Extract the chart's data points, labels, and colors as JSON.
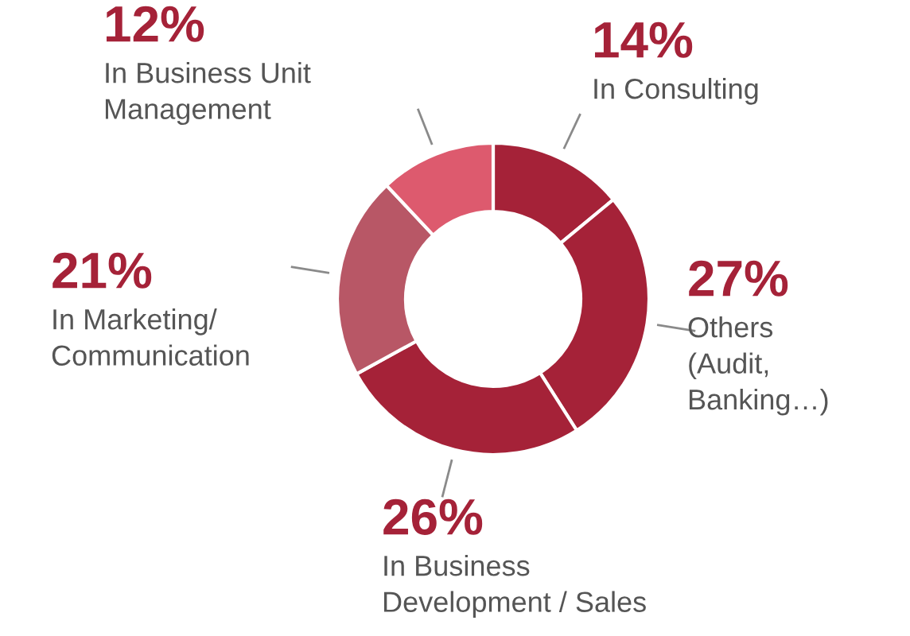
{
  "chart_data": {
    "type": "donut",
    "categories": [
      "In Consulting",
      "Others\n(Audit,\nBanking…)",
      "In Business\nDevelopment / Sales",
      "In Marketing/\nCommunication",
      "In Business Unit\nManagement"
    ],
    "values": [
      14,
      27,
      26,
      21,
      12
    ],
    "colors": [
      "#a52238",
      "#a52238",
      "#a52238",
      "#b85766",
      "#dd5a6e"
    ],
    "value_labels": [
      "14%",
      "27%",
      "26%",
      "21%",
      "12%"
    ],
    "legend": false
  }
}
